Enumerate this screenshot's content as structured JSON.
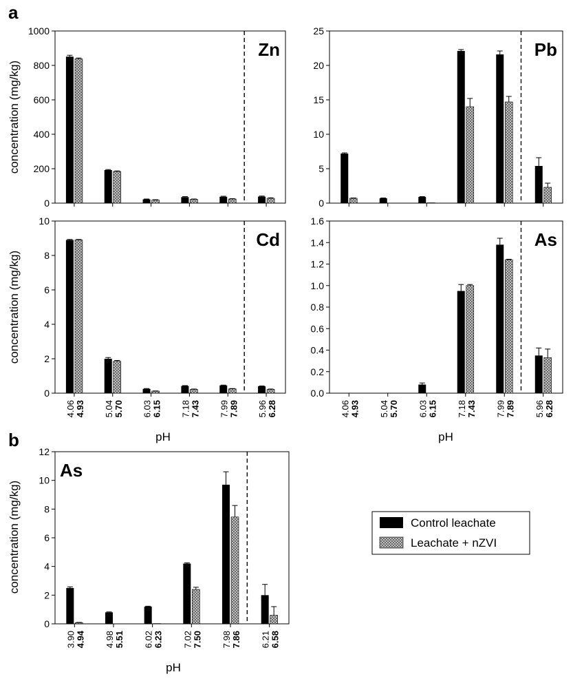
{
  "panel_labels": {
    "a": "a",
    "b": "b"
  },
  "xlabel": "pH",
  "ylabel": "concentration (mg/kg)",
  "legend": {
    "control": "Control leachate",
    "nzvi": "Leachate + nZVI"
  },
  "colors": {
    "control": "#000000",
    "nzvi": "#bdbdbd"
  },
  "chart_data": [
    {
      "type": "bar",
      "title": "Zn",
      "panel": "a",
      "ylabel": "concentration (mg/kg)",
      "xlabel": "",
      "ylim": [
        0,
        1000
      ],
      "yticks": [
        "0",
        "200",
        "400",
        "600",
        "800",
        "1000"
      ],
      "categories": [
        [
          "4.06",
          "4.93"
        ],
        [
          "5.04",
          "5.70"
        ],
        [
          "6.03",
          "6.15"
        ],
        [
          "7.18",
          "7.43"
        ],
        [
          "7.99",
          "7.89"
        ],
        [
          "5.96",
          "6.28"
        ]
      ],
      "series": [
        {
          "name": "Control leachate",
          "values": [
            851,
            192,
            22,
            35,
            37,
            38
          ],
          "errors": [
            8,
            3,
            2,
            3,
            3,
            3
          ]
        },
        {
          "name": "Leachate + nZVI",
          "values": [
            838,
            184,
            18,
            22,
            24,
            28
          ],
          "errors": [
            5,
            3,
            2,
            2,
            2,
            3
          ]
        }
      ],
      "dashed_line_after_category": 4,
      "show_tick_labels": false
    },
    {
      "type": "bar",
      "title": "Pb",
      "panel": "a",
      "ylabel": "",
      "xlabel": "",
      "ylim": [
        0,
        25
      ],
      "yticks": [
        "0",
        "5",
        "10",
        "15",
        "20",
        "25"
      ],
      "categories": [
        [
          "4.06",
          "4.93"
        ],
        [
          "5.04",
          "5.70"
        ],
        [
          "6.03",
          "6.15"
        ],
        [
          "7.18",
          "7.43"
        ],
        [
          "7.99",
          "7.89"
        ],
        [
          "5.96",
          "6.28"
        ]
      ],
      "series": [
        {
          "name": "Control leachate",
          "values": [
            7.2,
            0.7,
            0.9,
            22.1,
            21.6,
            5.4
          ],
          "errors": [
            0.1,
            0.05,
            0.05,
            0.2,
            0.5,
            1.2
          ]
        },
        {
          "name": "Leachate + nZVI",
          "values": [
            0.7,
            0,
            0.05,
            14.0,
            14.7,
            2.3
          ],
          "errors": [
            0.05,
            0,
            0,
            1.2,
            0.8,
            0.6
          ]
        }
      ],
      "dashed_line_after_category": 4,
      "show_tick_labels": false
    },
    {
      "type": "bar",
      "title": "Cd",
      "panel": "a",
      "ylabel": "concentration (mg/kg)",
      "xlabel": "pH",
      "ylim": [
        0,
        10
      ],
      "yticks": [
        "0",
        "2",
        "4",
        "6",
        "8",
        "10"
      ],
      "categories": [
        [
          "4.06",
          "4.93"
        ],
        [
          "5.04",
          "5.70"
        ],
        [
          "6.03",
          "6.15"
        ],
        [
          "7.18",
          "7.43"
        ],
        [
          "7.99",
          "7.89"
        ],
        [
          "5.96",
          "6.28"
        ]
      ],
      "series": [
        {
          "name": "Control leachate",
          "values": [
            8.9,
            2.0,
            0.25,
            0.42,
            0.45,
            0.4
          ],
          "errors": [
            0.03,
            0.07,
            0.02,
            0.02,
            0.02,
            0.02
          ]
        },
        {
          "name": "Leachate + nZVI",
          "values": [
            8.9,
            1.85,
            0.12,
            0.22,
            0.25,
            0.22
          ],
          "errors": [
            0.03,
            0.05,
            0.01,
            0.02,
            0.02,
            0.02
          ]
        }
      ],
      "dashed_line_after_category": 4,
      "show_tick_labels": true
    },
    {
      "type": "bar",
      "title": "As",
      "panel": "a",
      "ylabel": "",
      "xlabel": "pH",
      "ylim": [
        0,
        1.6
      ],
      "yticks": [
        "0.0",
        "0.2",
        "0.4",
        "0.6",
        "0.8",
        "1.0",
        "1.2",
        "1.4",
        "1.6"
      ],
      "categories": [
        [
          "4.06",
          "4.93"
        ],
        [
          "5.04",
          "5.70"
        ],
        [
          "6.03",
          "6.15"
        ],
        [
          "7.18",
          "7.43"
        ],
        [
          "7.99",
          "7.89"
        ],
        [
          "5.96",
          "6.28"
        ]
      ],
      "series": [
        {
          "name": "Control leachate",
          "values": [
            0,
            0,
            0.08,
            0.95,
            1.38,
            0.35
          ],
          "errors": [
            0,
            0,
            0.015,
            0.06,
            0.06,
            0.07
          ]
        },
        {
          "name": "Leachate + nZVI",
          "values": [
            0,
            0,
            0,
            1.0,
            1.24,
            0.33
          ],
          "errors": [
            0,
            0,
            0,
            0.01,
            0.005,
            0.08
          ]
        }
      ],
      "dashed_line_after_category": 4,
      "show_tick_labels": true
    },
    {
      "type": "bar",
      "title": "As",
      "panel": "b",
      "ylabel": "concentration (mg/kg)",
      "xlabel": "pH",
      "ylim": [
        0,
        12
      ],
      "yticks": [
        "0",
        "2",
        "4",
        "6",
        "8",
        "10",
        "12"
      ],
      "categories": [
        [
          "3.90",
          "4.94"
        ],
        [
          "4.98",
          "5.51"
        ],
        [
          "6.02",
          "6.23"
        ],
        [
          "7.02",
          "7.50"
        ],
        [
          "7.98",
          "7.86"
        ],
        [
          "6.21",
          "6.58"
        ]
      ],
      "series": [
        {
          "name": "Control leachate",
          "values": [
            2.5,
            0.8,
            1.2,
            4.2,
            9.7,
            2.0
          ],
          "errors": [
            0.08,
            0.03,
            0.03,
            0.05,
            0.9,
            0.75
          ]
        },
        {
          "name": "Leachate + nZVI",
          "values": [
            0.08,
            0,
            0.02,
            2.4,
            7.45,
            0.6
          ],
          "errors": [
            0.02,
            0,
            0,
            0.15,
            0.8,
            0.6
          ]
        }
      ],
      "dashed_line_after_category": 4,
      "show_tick_labels": true
    }
  ]
}
